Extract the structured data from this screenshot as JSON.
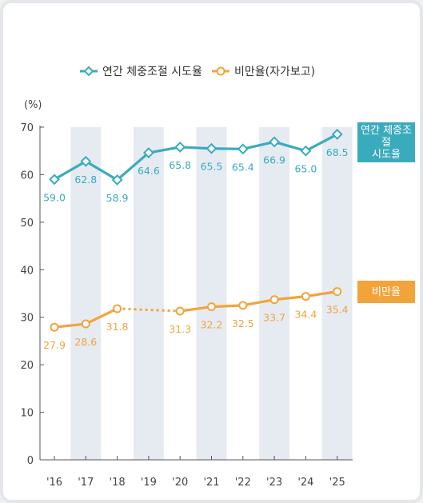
{
  "chart_data": {
    "type": "line",
    "unit": "(%)",
    "categories": [
      "'16",
      "'17",
      "'18",
      "'19",
      "'20",
      "'21",
      "'22",
      "'23",
      "'24",
      "'25"
    ],
    "ylim": [
      0,
      70
    ],
    "yticks": [
      0,
      10,
      20,
      30,
      40,
      50,
      60,
      70
    ],
    "shaded_categories": [
      "'17",
      "'19",
      "'21",
      "'23",
      "'25"
    ],
    "series": [
      {
        "name": "연간 체중조절 시도율",
        "tag_lines": [
          "연간 체중조절",
          "시도율"
        ],
        "color": "#3aabbd",
        "marker": "diamond",
        "values": [
          59.0,
          62.8,
          58.9,
          64.6,
          65.8,
          65.5,
          65.4,
          66.9,
          65.0,
          68.5
        ],
        "labels": [
          "59.0",
          "62.8",
          "58.9",
          "64.6",
          "65.8",
          "65.5",
          "65.4",
          "66.9",
          "65.0",
          "68.5"
        ]
      },
      {
        "name": "비만율(자가보고)",
        "tag_lines": [
          "비만율"
        ],
        "color": "#f2a43a",
        "marker": "circle",
        "values": [
          27.9,
          28.6,
          31.8,
          null,
          31.3,
          32.2,
          32.5,
          33.7,
          34.4,
          35.4
        ],
        "labels": [
          "27.9",
          "28.6",
          "31.8",
          "",
          "31.3",
          "32.2",
          "32.5",
          "33.7",
          "34.4",
          "35.4"
        ],
        "dotted_gap": [
          "'18",
          "'20"
        ]
      }
    ],
    "legend_position": "top"
  },
  "colors": {
    "band": "#e6ebf2",
    "axis": "#555555",
    "label_dark": "#444444"
  }
}
